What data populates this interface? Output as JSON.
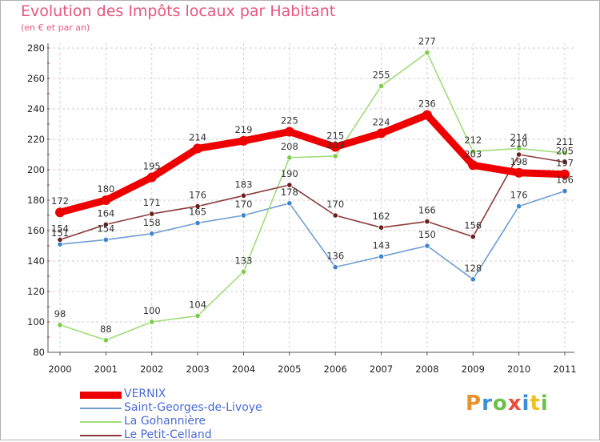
{
  "header": {
    "title": "Evolution des Impôts locaux par Habitant",
    "subtitle": "(en € et par an)"
  },
  "logo": {
    "text": "Proxiti",
    "colors": [
      "#e6932e",
      "#3b8fd8",
      "#6cc04a",
      "#e84f3c",
      "#3b8fd8",
      "#f0c020",
      "#6cc04a"
    ]
  },
  "chart_data": {
    "type": "line",
    "title": "Evolution des Impôts locaux par Habitant",
    "subtitle": "(en € et par an)",
    "xlabel": "",
    "ylabel": "",
    "categories": [
      "2000",
      "2001",
      "2002",
      "2003",
      "2004",
      "2005",
      "2006",
      "2007",
      "2008",
      "2009",
      "2010",
      "2011"
    ],
    "ylim": [
      80,
      280
    ],
    "yticks": [
      80,
      100,
      120,
      140,
      160,
      180,
      200,
      220,
      240,
      260,
      280
    ],
    "grid": true,
    "legend_position": "bottom-left",
    "series": [
      {
        "name": "VERNIX",
        "values": [
          172,
          180,
          195,
          214,
          219,
          225,
          215,
          224,
          236,
          203,
          198,
          197
        ],
        "color": "#ee0000",
        "point_color": "#ee0000",
        "width": 9,
        "labels": [
          "172",
          "180",
          "195",
          "214",
          "219",
          "225",
          "215",
          "224",
          "236",
          "203",
          "198",
          "197"
        ]
      },
      {
        "name": "Saint-Georges-de-Livoye",
        "values": [
          151,
          154,
          158,
          165,
          170,
          178,
          136,
          143,
          150,
          128,
          176,
          186
        ],
        "color": "#6f9ed2",
        "point_color": "#3d85d0",
        "width": 1.6,
        "labels": [
          "151",
          "154",
          "158",
          "165",
          "170",
          "178",
          "136",
          "143",
          "150",
          "128",
          "176",
          "186"
        ]
      },
      {
        "name": "La Gohannière",
        "values": [
          98,
          88,
          100,
          104,
          133,
          208,
          209,
          255,
          277,
          212,
          214,
          211
        ],
        "color": "#a0dc7a",
        "point_color": "#7ccc4a",
        "width": 1.6,
        "labels": [
          "98",
          "88",
          "100",
          "104",
          "133",
          "208",
          "209",
          "255",
          "277",
          "212",
          "214",
          "211"
        ]
      },
      {
        "name": "Le Petit-Celland",
        "values": [
          154,
          164,
          171,
          176,
          183,
          190,
          170,
          162,
          166,
          156,
          210,
          205
        ],
        "color": "#8a3a3a",
        "point_color": "#6a1e1e",
        "width": 1.6,
        "labels": [
          "154",
          "164",
          "171",
          "176",
          "183",
          "190",
          "170",
          "162",
          "166",
          "156",
          "210",
          "205"
        ]
      }
    ]
  }
}
